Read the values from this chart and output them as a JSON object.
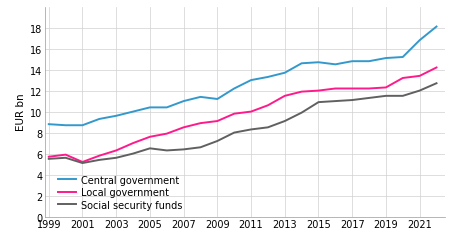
{
  "years": [
    1999,
    2000,
    2001,
    2002,
    2003,
    2004,
    2005,
    2006,
    2007,
    2008,
    2009,
    2010,
    2011,
    2012,
    2013,
    2014,
    2015,
    2016,
    2017,
    2018,
    2019,
    2020,
    2021,
    2022
  ],
  "central_government": [
    8.8,
    8.7,
    8.7,
    9.3,
    9.6,
    10.0,
    10.4,
    10.4,
    11.0,
    11.4,
    11.2,
    12.2,
    13.0,
    13.3,
    13.7,
    14.6,
    14.7,
    14.5,
    14.8,
    14.8,
    15.1,
    15.2,
    16.8,
    18.1
  ],
  "local_government": [
    5.7,
    5.9,
    5.2,
    5.8,
    6.3,
    7.0,
    7.6,
    7.9,
    8.5,
    8.9,
    9.1,
    9.8,
    10.0,
    10.6,
    11.5,
    11.9,
    12.0,
    12.2,
    12.2,
    12.2,
    12.3,
    13.2,
    13.4,
    14.2
  ],
  "social_security_funds": [
    5.5,
    5.6,
    5.1,
    5.4,
    5.6,
    6.0,
    6.5,
    6.3,
    6.4,
    6.6,
    7.2,
    8.0,
    8.3,
    8.5,
    9.1,
    9.9,
    10.9,
    11.0,
    11.1,
    11.3,
    11.5,
    11.5,
    12.0,
    12.7
  ],
  "color_central": "#3399cc",
  "color_local": "#ff1a8c",
  "color_social": "#606060",
  "ylabel": "EUR bn",
  "ylim": [
    0,
    20
  ],
  "yticks": [
    0,
    2,
    4,
    6,
    8,
    10,
    12,
    14,
    16,
    18
  ],
  "xlim": [
    1998.8,
    2022.5
  ],
  "xticks": [
    1999,
    2001,
    2003,
    2005,
    2007,
    2009,
    2011,
    2013,
    2015,
    2017,
    2019,
    2021
  ],
  "legend_labels": [
    "Central government",
    "Local government",
    "Social security funds"
  ],
  "grid_color": "#d0d0d0",
  "background_color": "#ffffff",
  "line_width": 1.4
}
